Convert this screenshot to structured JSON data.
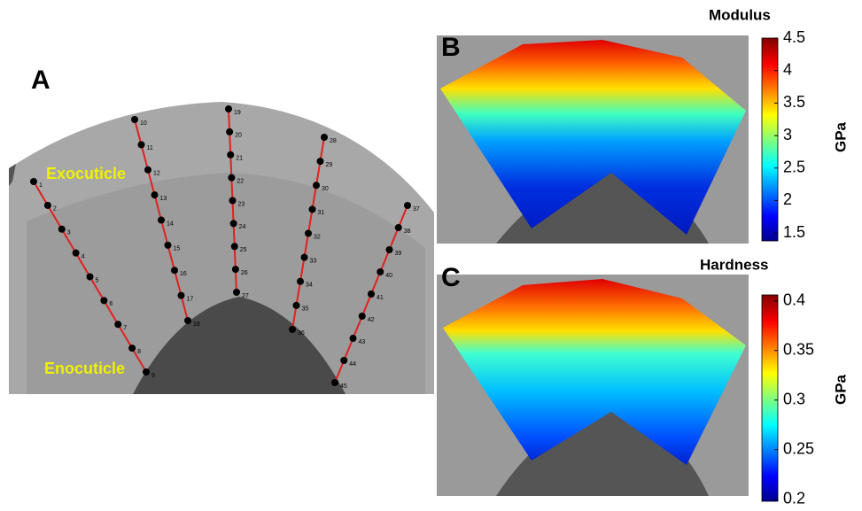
{
  "panel_a": {
    "label": "A",
    "annotations": [
      "Exocuticle",
      "Enocuticle"
    ],
    "points": [
      "1",
      "2",
      "3",
      "4",
      "5",
      "6",
      "7",
      "8",
      "9",
      "10",
      "11",
      "12",
      "13",
      "14",
      "15",
      "16",
      "17",
      "18",
      "19",
      "20",
      "21",
      "22",
      "23",
      "24",
      "25",
      "26",
      "27",
      "28",
      "29",
      "30",
      "31",
      "32",
      "33",
      "34",
      "35",
      "36",
      "37",
      "38",
      "39",
      "40",
      "41",
      "42",
      "43",
      "44",
      "45"
    ]
  },
  "panel_b": {
    "label": "B",
    "title": "Modulus",
    "unit": "GPa",
    "lim": [
      1.38,
      4.5
    ],
    "ticks": [
      1.5,
      2,
      2.5,
      3,
      3.5,
      4,
      4.5
    ]
  },
  "panel_c": {
    "label": "C",
    "title": "Hardness",
    "unit": "GPa",
    "lim": [
      0.198,
      0.406
    ],
    "ticks": [
      0.2,
      0.25,
      0.3,
      0.35,
      0.4
    ]
  }
}
